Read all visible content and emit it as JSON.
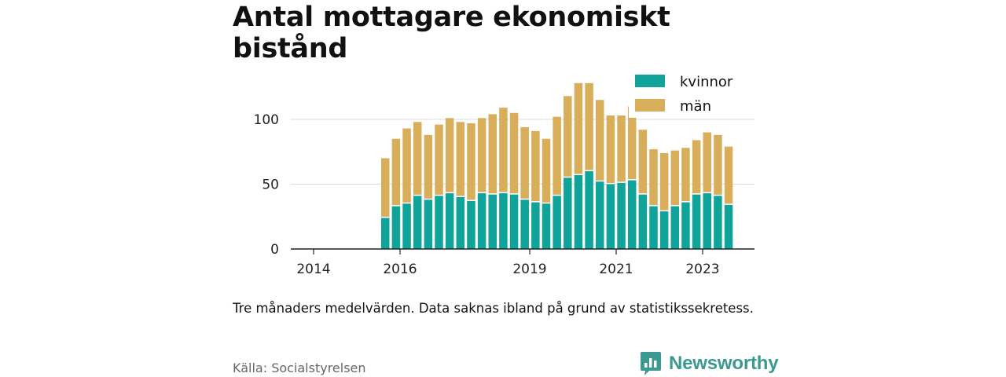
{
  "chart_data": {
    "type": "bar",
    "stacked": true,
    "title": "Antal mottagare ekonomiskt bistånd",
    "note": "Tre månaders medelvärden. Data saknas ibland på grund av statistikssekretess.",
    "source": "Källa: Socialstyrelsen",
    "brand": "Newsworthy",
    "x_ticks": [
      "2014",
      "2016",
      "2019",
      "2021",
      "2023"
    ],
    "y_ticks": [
      "0",
      "50",
      "100"
    ],
    "ylim": [
      0,
      130
    ],
    "grid": true,
    "legend_position": "top-right",
    "colors": {
      "kvinnor": "#0fa399",
      "män": "#d9ae5b"
    },
    "series": [
      {
        "name": "kvinnor",
        "values": [
          24,
          33,
          35,
          41,
          38,
          41,
          43,
          40,
          37,
          43,
          42,
          43,
          42,
          38,
          36,
          35,
          41,
          55,
          57,
          60,
          52,
          50,
          51,
          53,
          42,
          33,
          29,
          33,
          36,
          42,
          43,
          41,
          34
        ]
      },
      {
        "name": "män",
        "values": [
          46,
          52,
          58,
          57,
          50,
          55,
          58,
          58,
          60,
          58,
          62,
          66,
          63,
          56,
          55,
          50,
          61,
          63,
          71,
          68,
          63,
          53,
          52,
          57,
          50,
          44,
          45,
          43,
          42,
          42,
          47,
          47,
          45
        ]
      }
    ]
  }
}
